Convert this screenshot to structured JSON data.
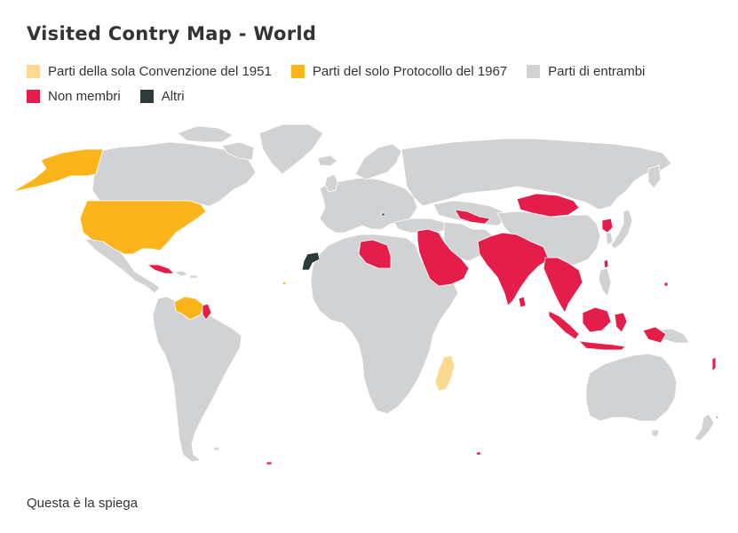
{
  "title": "Visited Contry Map - World",
  "legend": [
    {
      "label": "Parti della sola Convenzione del 1951",
      "color": "#FBD98E",
      "category": "convention_only"
    },
    {
      "label": "Parti del solo Protocollo del 1967",
      "color": "#FBB41A",
      "category": "protocol_only"
    },
    {
      "label": "Parti di entrambi",
      "color": "#D0D2D4",
      "category": "both"
    },
    {
      "label": "Non membri",
      "color": "#E51D4A",
      "category": "non_members"
    },
    {
      "label": "Altri",
      "color": "#2D3A3A",
      "category": "others"
    }
  ],
  "map": {
    "ocean_color": "#FFFFFF",
    "border_color": "#FFFFFF",
    "highlighted": {
      "protocol_only": [
        "United States",
        "Venezuela",
        "Cape Verde"
      ],
      "convention_only": [
        "Madagascar"
      ],
      "non_members": [
        "Cuba",
        "Guyana",
        "Libya",
        "Saudi Arabia",
        "Oman",
        "United Arab Emirates",
        "Eritrea",
        "Jordan",
        "Syria",
        "Iraq",
        "Uzbekistan",
        "Pakistan",
        "India",
        "Nepal",
        "Bangladesh",
        "Sri Lanka",
        "Myanmar",
        "Thailand",
        "Laos",
        "Vietnam",
        "Malaysia",
        "Indonesia",
        "Mongolia",
        "North Korea",
        "Taiwan",
        "Brunei",
        "Singapore",
        "Palau",
        "Tonga"
      ],
      "others": [
        "Western Sahara",
        "Kosovo"
      ]
    }
  },
  "caption": "Questa è la spiega"
}
